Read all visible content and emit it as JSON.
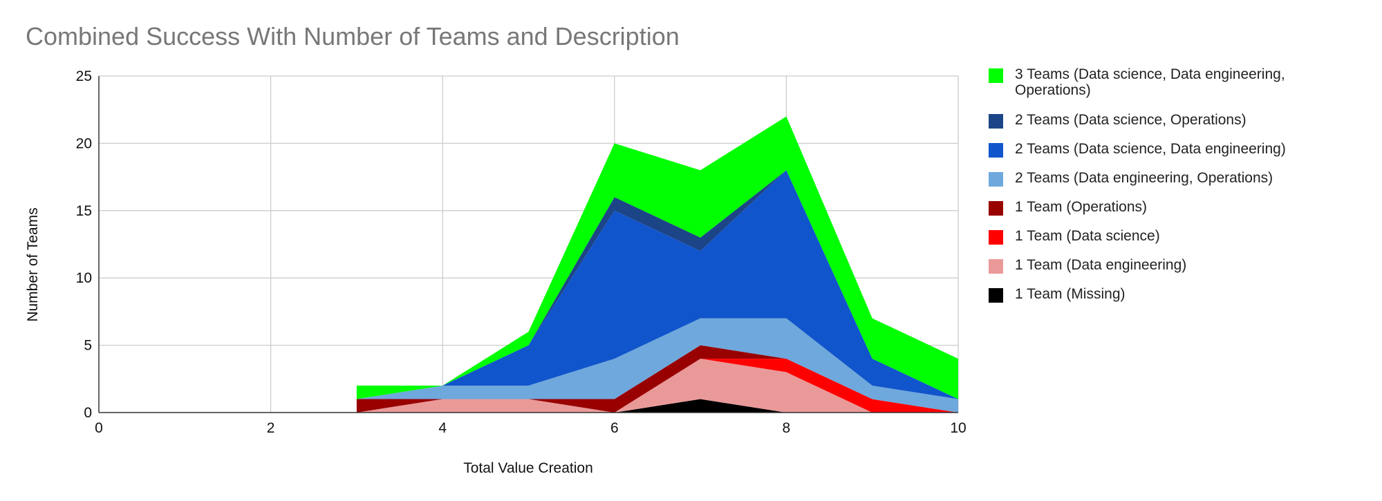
{
  "chart_data": {
    "type": "area",
    "stacked": true,
    "title": "Combined Success With Number of Teams and Description",
    "xlabel": "Total Value Creation",
    "ylabel": "Number of Teams",
    "xlim": [
      0,
      10
    ],
    "ylim": [
      0,
      25
    ],
    "xticks": [
      0,
      2,
      4,
      6,
      8,
      10
    ],
    "yticks": [
      0,
      5,
      10,
      15,
      20,
      25
    ],
    "grid": true,
    "legend_position": "right",
    "x": [
      3,
      4,
      5,
      6,
      7,
      8,
      9,
      10
    ],
    "series": [
      {
        "name": "1 Team (Missing)",
        "color": "#000000",
        "values": [
          0,
          0,
          0,
          0,
          1,
          0,
          0,
          0
        ]
      },
      {
        "name": "1 Team (Data engineering)",
        "color": "#ea9999",
        "values": [
          0,
          1,
          1,
          0,
          3,
          3,
          0,
          0
        ]
      },
      {
        "name": "1 Team (Data science)",
        "color": "#ff0000",
        "values": [
          0,
          0,
          0,
          0,
          0,
          1,
          1,
          0
        ]
      },
      {
        "name": "1 Team (Operations)",
        "color": "#990000",
        "values": [
          1,
          0,
          0,
          1,
          1,
          0,
          0,
          0
        ]
      },
      {
        "name": "2 Teams (Data engineering, Operations)",
        "color": "#6fa8dc",
        "values": [
          0,
          1,
          1,
          3,
          2,
          3,
          1,
          1
        ]
      },
      {
        "name": "2 Teams (Data science, Data engineering)",
        "color": "#1155cc",
        "values": [
          0,
          0,
          3,
          11,
          5,
          11,
          2,
          0
        ]
      },
      {
        "name": "2 Teams (Data science, Operations)",
        "color": "#1c4587",
        "values": [
          0,
          0,
          0,
          1,
          1,
          0,
          0,
          0
        ]
      },
      {
        "name": "3 Teams (Data science, Data engineering, Operations)",
        "color": "#00ff00",
        "values": [
          1,
          0,
          1,
          4,
          5,
          4,
          3,
          3
        ]
      }
    ]
  },
  "legend": [
    {
      "label": "3 Teams (Data science, Data engineering, Operations)",
      "color": "#00ff00"
    },
    {
      "label": "2 Teams (Data science, Operations)",
      "color": "#1c4587"
    },
    {
      "label": "2 Teams (Data science, Data engineering)",
      "color": "#1155cc"
    },
    {
      "label": "2 Teams (Data engineering, Operations)",
      "color": "#6fa8dc"
    },
    {
      "label": "1 Team (Operations)",
      "color": "#990000"
    },
    {
      "label": "1 Team (Data science)",
      "color": "#ff0000"
    },
    {
      "label": "1 Team (Data engineering)",
      "color": "#ea9999"
    },
    {
      "label": "1 Team (Missing)",
      "color": "#000000"
    }
  ]
}
